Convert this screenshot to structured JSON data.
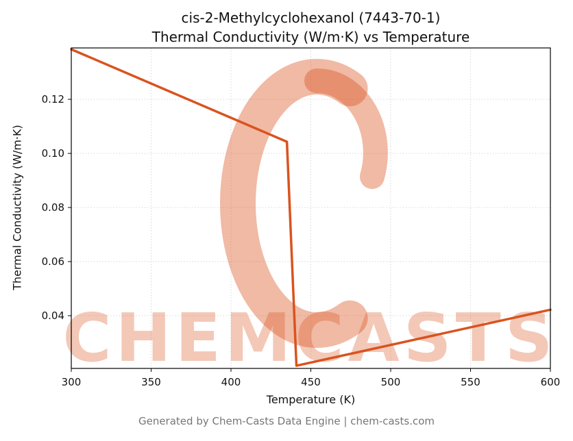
{
  "chart_data": {
    "type": "line",
    "title_line1": "cis-2-Methylcyclohexanol (7443-70-1)",
    "title_line2": "Thermal Conductivity (W/m·K) vs Temperature",
    "xlabel": "Temperature (K)",
    "ylabel": "Thermal Conductivity (W/m·K)",
    "xlim": [
      300,
      600
    ],
    "ylim": [
      0.0205,
      0.139
    ],
    "x_ticks": [
      300,
      350,
      400,
      450,
      500,
      550,
      600
    ],
    "y_ticks": [
      0.04,
      0.06,
      0.08,
      0.1,
      0.12
    ],
    "grid": true,
    "legend": "none",
    "line_color": "#d9531e",
    "series": [
      {
        "name": "Thermal Conductivity",
        "points": [
          {
            "x": 300,
            "y": 0.1385
          },
          {
            "x": 435,
            "y": 0.1043
          },
          {
            "x": 441,
            "y": 0.0215
          },
          {
            "x": 600,
            "y": 0.0422
          }
        ]
      }
    ]
  },
  "watermark": {
    "text": "CHEMCASTS",
    "color": "#d9531e"
  },
  "footer": {
    "text": "Generated by Chem-Casts Data Engine | chem-casts.com"
  }
}
